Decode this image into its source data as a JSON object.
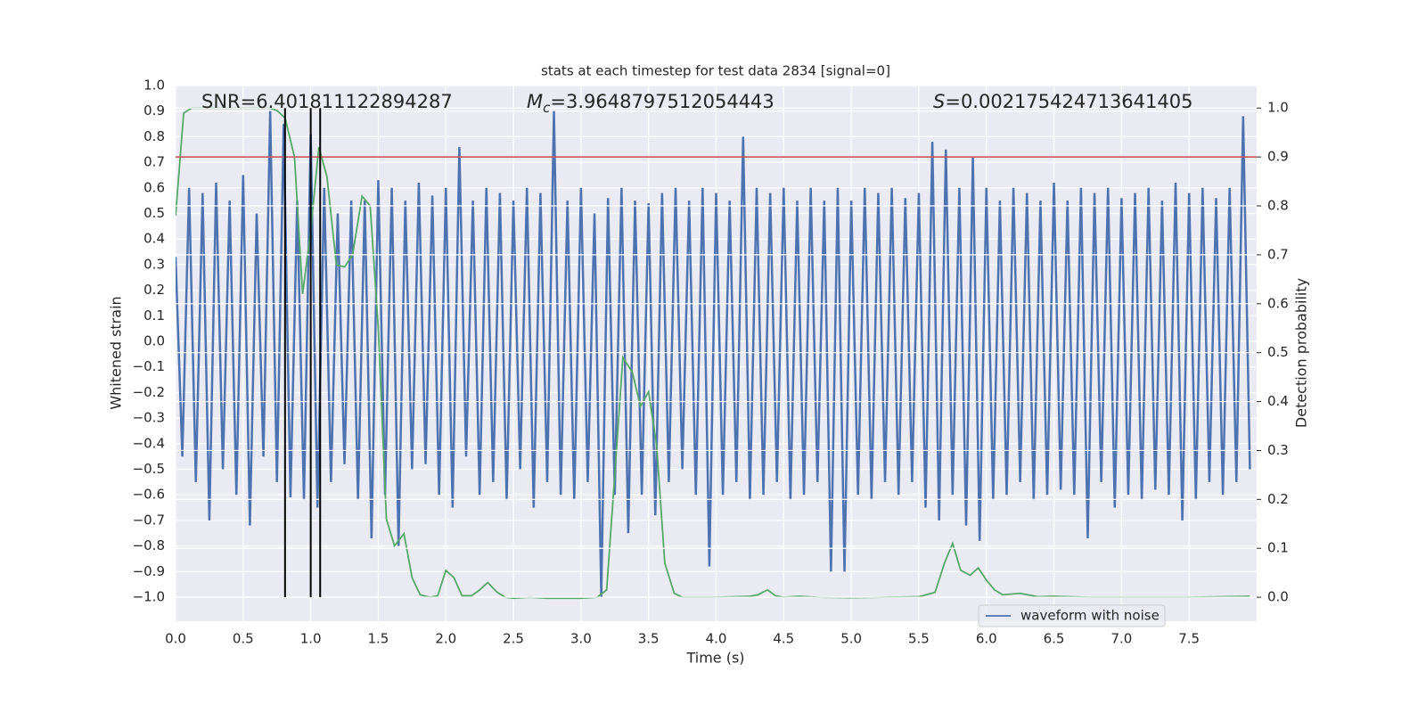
{
  "chart_data": {
    "type": "line",
    "title": "stats at each timestep for test data 2834 [signal=0]",
    "xlabel": "Time (s)",
    "ylabel": "Whitened strain",
    "y2label": "Detection probability",
    "annotations": [
      {
        "text": "SNR=6.401811122894287"
      },
      {
        "symbol": "M",
        "subscript": "c",
        "text": "=3.9648797512054443"
      },
      {
        "symbol": "S",
        "text": "=0.002175424713641405"
      }
    ],
    "xlim": [
      0,
      8.0
    ],
    "xticks": [
      {
        "value": 0.0,
        "label": "0.0"
      },
      0.5,
      {
        "value": 1.0,
        "label": "1.0"
      },
      1.5,
      {
        "value": 2.0,
        "label": "2.0"
      },
      2.5,
      {
        "value": 3.0,
        "label": "3.0"
      },
      3.5,
      {
        "value": 4.0,
        "label": "4.0"
      },
      4.5,
      {
        "value": 5.0,
        "label": "5.0"
      },
      5.5,
      {
        "value": 6.0,
        "label": "6.0"
      },
      6.5,
      {
        "value": 7.0,
        "label": "7.0"
      },
      7.5
    ],
    "ylim": [
      -1.094,
      1.0
    ],
    "yticks": [
      {
        "value": -1.0,
        "label": "−1.0"
      },
      {
        "value": -0.9,
        "label": "−0.9"
      },
      {
        "value": -0.8,
        "label": "−0.8"
      },
      {
        "value": -0.7,
        "label": "−0.7"
      },
      {
        "value": -0.6,
        "label": "−0.6"
      },
      {
        "value": -0.5,
        "label": "−0.5"
      },
      {
        "value": -0.4,
        "label": "−0.4"
      },
      {
        "value": -0.3,
        "label": "−0.3"
      },
      {
        "value": -0.2,
        "label": "−0.2"
      },
      {
        "value": -0.1,
        "label": "−0.1"
      },
      {
        "value": 0.0,
        "label": "0.0"
      },
      0.1,
      0.2,
      0.3,
      0.4,
      0.5,
      0.6,
      0.7,
      0.8,
      0.9,
      {
        "value": 1.0,
        "label": "1.0"
      }
    ],
    "y2lim": [
      -0.049,
      1.046
    ],
    "y2ticks": [
      {
        "value": 0.0,
        "label": "0.0"
      },
      0.1,
      0.2,
      0.3,
      0.4,
      0.5,
      0.6,
      0.7,
      0.8,
      0.9,
      {
        "value": 1.0,
        "label": "1.0"
      }
    ],
    "grid": true,
    "legend": "lower right",
    "series": [
      {
        "name": "waveform with noise",
        "color": "#4c72b0",
        "x": [
          0.0,
          0.05,
          0.1,
          0.15,
          0.2,
          0.25,
          0.3,
          0.35,
          0.4,
          0.45,
          0.5,
          0.55,
          0.6,
          0.65,
          0.7,
          0.75,
          0.8,
          0.85,
          0.9,
          0.95,
          1.0,
          1.05,
          1.1,
          1.15,
          1.2,
          1.25,
          1.3,
          1.35,
          1.4,
          1.45,
          1.5,
          1.55,
          1.6,
          1.65,
          1.7,
          1.75,
          1.8,
          1.85,
          1.9,
          1.95,
          2.0,
          2.05,
          2.1,
          2.15,
          2.2,
          2.25,
          2.3,
          2.35,
          2.4,
          2.45,
          2.5,
          2.55,
          2.6,
          2.65,
          2.7,
          2.75,
          2.8,
          2.85,
          2.9,
          2.95,
          3.0,
          3.05,
          3.1,
          3.15,
          3.2,
          3.25,
          3.3,
          3.35,
          3.4,
          3.45,
          3.5,
          3.55,
          3.6,
          3.65,
          3.7,
          3.75,
          3.8,
          3.85,
          3.9,
          3.95,
          4.0,
          4.05,
          4.1,
          4.15,
          4.2,
          4.25,
          4.3,
          4.35,
          4.4,
          4.45,
          4.5,
          4.55,
          4.6,
          4.65,
          4.7,
          4.75,
          4.8,
          4.85,
          4.9,
          4.95,
          5.0,
          5.05,
          5.1,
          5.15,
          5.2,
          5.25,
          5.3,
          5.35,
          5.4,
          5.45,
          5.5,
          5.55,
          5.6,
          5.65,
          5.7,
          5.75,
          5.8,
          5.85,
          5.9,
          5.95,
          6.0,
          6.05,
          6.1,
          6.15,
          6.2,
          6.25,
          6.3,
          6.35,
          6.4,
          6.45,
          6.5,
          6.55,
          6.6,
          6.65,
          6.7,
          6.75,
          6.8,
          6.85,
          6.9,
          6.95,
          7.0,
          7.05,
          7.1,
          7.15,
          7.2,
          7.25,
          7.3,
          7.35,
          7.4,
          7.45,
          7.5,
          7.55,
          7.6,
          7.65,
          7.7,
          7.75,
          7.8,
          7.85,
          7.9,
          7.95
        ],
        "values": [
          0.33,
          -0.45,
          0.6,
          -0.55,
          0.58,
          -0.7,
          0.62,
          -0.5,
          0.55,
          -0.6,
          0.65,
          -0.72,
          0.5,
          -0.45,
          0.9,
          -0.55,
          0.85,
          -0.61,
          0.55,
          -0.62,
          0.81,
          -0.65,
          0.6,
          -0.55,
          0.5,
          -0.48,
          0.55,
          -0.62,
          0.55,
          -0.77,
          0.63,
          -0.6,
          0.6,
          -0.8,
          0.55,
          -0.5,
          0.62,
          -0.48,
          0.57,
          -0.6,
          0.6,
          -0.65,
          0.76,
          -0.45,
          0.55,
          -0.6,
          0.6,
          -0.55,
          0.58,
          -0.62,
          0.55,
          -0.5,
          0.6,
          -0.65,
          0.58,
          -0.55,
          0.9,
          -0.6,
          0.55,
          -0.62,
          0.6,
          -0.55,
          0.5,
          -1.0,
          0.56,
          -0.6,
          0.6,
          -0.75,
          0.55,
          -0.6,
          0.54,
          -0.68,
          0.58,
          -0.55,
          0.6,
          -0.5,
          0.55,
          -0.6,
          0.6,
          -0.88,
          0.58,
          -0.6,
          0.55,
          -0.55,
          0.8,
          -0.62,
          0.6,
          -0.6,
          0.58,
          -0.55,
          0.6,
          -0.62,
          0.55,
          -0.6,
          0.6,
          -0.55,
          0.55,
          -0.9,
          0.6,
          -0.9,
          0.55,
          -0.6,
          0.6,
          -0.62,
          0.58,
          -0.55,
          0.6,
          -0.6,
          0.56,
          -0.55,
          0.58,
          -0.65,
          0.78,
          -0.7,
          0.75,
          -0.6,
          0.6,
          -0.72,
          0.72,
          -0.78,
          0.6,
          -0.62,
          0.55,
          -0.6,
          0.6,
          -0.55,
          0.58,
          -0.62,
          0.55,
          -0.6,
          0.62,
          -0.58,
          0.55,
          -0.6,
          0.6,
          -0.77,
          0.58,
          -0.55,
          0.6,
          -0.65,
          0.56,
          -0.6,
          0.58,
          -0.62,
          0.6,
          -0.58,
          0.55,
          -0.6,
          0.62,
          -0.7,
          0.58,
          -0.62,
          0.6,
          -0.55,
          0.56,
          -0.6,
          0.6,
          -0.55,
          0.88,
          -0.5
        ]
      },
      {
        "color": "#55a868",
        "axis": "y2",
        "x": [
          0.0,
          0.06,
          0.12,
          0.2,
          0.3,
          0.4,
          0.5,
          0.6,
          0.7,
          0.75,
          0.81,
          0.88,
          0.94,
          1.0,
          1.06,
          1.12,
          1.19,
          1.25,
          1.31,
          1.38,
          1.44,
          1.5,
          1.56,
          1.62,
          1.69,
          1.75,
          1.81,
          1.88,
          1.94,
          2.0,
          2.06,
          2.12,
          2.19,
          2.25,
          2.31,
          2.38,
          2.44,
          2.5,
          2.62,
          2.75,
          2.9,
          3.0,
          3.12,
          3.19,
          3.25,
          3.31,
          3.38,
          3.44,
          3.5,
          3.56,
          3.62,
          3.69,
          3.75,
          4.0,
          4.25,
          4.31,
          4.38,
          4.44,
          4.5,
          4.62,
          4.75,
          5.0,
          5.25,
          5.5,
          5.62,
          5.69,
          5.75,
          5.81,
          5.88,
          5.94,
          6.0,
          6.06,
          6.12,
          6.25,
          6.38,
          6.5,
          6.75,
          7.0,
          7.25,
          7.5,
          7.75,
          7.95
        ],
        "values": [
          0.78,
          0.99,
          1.0,
          1.0,
          1.0,
          1.0,
          1.0,
          1.0,
          1.0,
          0.995,
          0.98,
          0.9,
          0.62,
          0.75,
          0.92,
          0.86,
          0.68,
          0.675,
          0.7,
          0.82,
          0.8,
          0.55,
          0.16,
          0.105,
          0.13,
          0.04,
          0.005,
          0.0,
          0.003,
          0.055,
          0.04,
          0.003,
          0.003,
          0.015,
          0.03,
          0.01,
          0.0,
          -0.002,
          0.0,
          -0.002,
          -0.002,
          -0.002,
          0.0,
          0.015,
          0.25,
          0.49,
          0.46,
          0.39,
          0.42,
          0.31,
          0.07,
          0.008,
          0.0,
          0.0,
          0.002,
          0.005,
          0.015,
          0.003,
          0.0,
          0.002,
          0.0,
          -0.001,
          0.0,
          0.001,
          0.01,
          0.07,
          0.11,
          0.055,
          0.045,
          0.06,
          0.035,
          0.015,
          0.005,
          0.008,
          0.001,
          0.002,
          0.0,
          0.0,
          0.0,
          0.0,
          0.001,
          0.002
        ]
      }
    ],
    "hline": {
      "value": 0.9,
      "axis": "y2",
      "color": "#c44e52"
    },
    "vlines": {
      "x": [
        0.81,
        1.0,
        1.07
      ],
      "ymin": 0.0,
      "ymax": 1.0,
      "axis": "y2",
      "color": "#000000"
    }
  }
}
